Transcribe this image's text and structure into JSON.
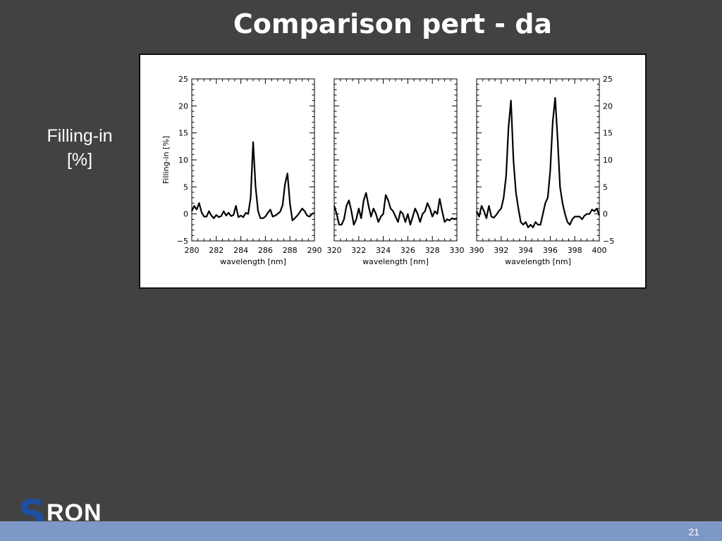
{
  "slide": {
    "title": "Comparison pert - da",
    "side_label_line1": "Filling-in",
    "side_label_line2": "[%]",
    "page_number": "21"
  },
  "logo": {
    "s": "S",
    "ron": "RON"
  },
  "chart_data": {
    "type": "line",
    "ylabel": "Filling-in [%]",
    "ylim": [
      -5,
      25
    ],
    "yticks": [
      -5,
      0,
      5,
      10,
      15,
      20,
      25
    ],
    "ytick_labels": [
      "−5",
      "0",
      "5",
      "10",
      "15",
      "20",
      "25"
    ],
    "line_color": "#000000",
    "panels": [
      {
        "xlabel": "wavelength [nm]",
        "xlim": [
          280,
          290
        ],
        "xticks": [
          280,
          282,
          284,
          286,
          288,
          290
        ],
        "x": [
          280,
          280.2,
          280.4,
          280.6,
          280.8,
          281,
          281.2,
          281.4,
          281.6,
          281.8,
          282,
          282.2,
          282.4,
          282.6,
          282.8,
          283,
          283.2,
          283.4,
          283.6,
          283.8,
          284,
          284.2,
          284.4,
          284.6,
          284.8,
          285,
          285.2,
          285.4,
          285.6,
          285.8,
          286,
          286.2,
          286.4,
          286.6,
          286.8,
          287,
          287.2,
          287.4,
          287.6,
          287.8,
          288,
          288.2,
          288.4,
          288.6,
          288.8,
          289,
          289.2,
          289.4,
          289.6,
          289.8,
          290
        ],
        "y": [
          0.5,
          1.5,
          0.8,
          2,
          0.3,
          -0.5,
          -0.5,
          0.5,
          -0.3,
          -0.8,
          -0.2,
          -0.6,
          -0.4,
          0.5,
          -0.3,
          0.2,
          -0.4,
          -0.2,
          1.5,
          -0.6,
          -0.3,
          -0.6,
          0.2,
          0,
          3,
          13.3,
          5,
          0.5,
          -0.8,
          -0.8,
          -0.5,
          0.2,
          0.8,
          -0.5,
          -0.3,
          0,
          0.4,
          1.6,
          5.5,
          7.5,
          2,
          -1.2,
          -0.8,
          -0.3,
          0.3,
          1,
          0.5,
          -0.3,
          -0.5,
          0,
          0.2
        ]
      },
      {
        "xlabel": "wavelength [nm]",
        "xlim": [
          320,
          330
        ],
        "xticks": [
          320,
          322,
          324,
          326,
          328,
          330
        ],
        "x": [
          320,
          320.2,
          320.4,
          320.6,
          320.8,
          321,
          321.2,
          321.4,
          321.6,
          321.8,
          322,
          322.2,
          322.4,
          322.6,
          322.8,
          323,
          323.2,
          323.4,
          323.6,
          323.8,
          324,
          324.2,
          324.4,
          324.6,
          324.8,
          325,
          325.2,
          325.4,
          325.6,
          325.8,
          326,
          326.2,
          326.4,
          326.6,
          326.8,
          327,
          327.2,
          327.4,
          327.6,
          327.8,
          328,
          328.2,
          328.4,
          328.6,
          328.8,
          329,
          329.2,
          329.4,
          329.6,
          329.8,
          330
        ],
        "y": [
          1.5,
          0,
          -2,
          -2,
          -1,
          1.5,
          2.5,
          0.5,
          -2,
          -1,
          1,
          -0.8,
          2.5,
          3.9,
          1.5,
          -0.5,
          1,
          0,
          -1.5,
          -0.5,
          0,
          3.5,
          2.5,
          1,
          0.5,
          -0.5,
          -1.5,
          0.5,
          0,
          -1.5,
          0,
          -2,
          -0.5,
          1,
          0,
          -1.5,
          0,
          0.5,
          2,
          1,
          -0.5,
          0.5,
          0,
          2.8,
          0.5,
          -1.5,
          -1,
          -1.2,
          -0.8,
          -1,
          -0.8
        ]
      },
      {
        "xlabel": "wavelength [nm]",
        "xlim": [
          390,
          400
        ],
        "xticks": [
          390,
          392,
          394,
          396,
          398,
          400
        ],
        "x": [
          390,
          390.2,
          390.4,
          390.6,
          390.8,
          391,
          391.2,
          391.4,
          391.6,
          391.8,
          392,
          392.2,
          392.4,
          392.6,
          392.8,
          393,
          393.2,
          393.4,
          393.6,
          393.8,
          394,
          394.2,
          394.4,
          394.6,
          394.8,
          395,
          395.2,
          395.4,
          395.6,
          395.8,
          396,
          396.2,
          396.4,
          396.6,
          396.8,
          397,
          397.2,
          397.4,
          397.6,
          397.8,
          398,
          398.2,
          398.4,
          398.6,
          398.8,
          399,
          399.2,
          399.4,
          399.6,
          399.8,
          400
        ],
        "y": [
          0.5,
          -0.5,
          1.5,
          0.5,
          -0.8,
          1.5,
          -0.5,
          -0.7,
          -0.2,
          0.5,
          1,
          3,
          7,
          16,
          21,
          10,
          4,
          1,
          -1.5,
          -2,
          -1.5,
          -2.5,
          -2,
          -2.5,
          -1.5,
          -2,
          -2,
          0,
          2,
          3,
          8,
          17,
          21.5,
          14,
          5,
          2,
          0,
          -1.5,
          -2,
          -1,
          -0.5,
          -0.5,
          -0.5,
          -1,
          -0.3,
          0,
          0,
          0.8,
          0.5,
          1,
          -0.3
        ]
      }
    ]
  }
}
